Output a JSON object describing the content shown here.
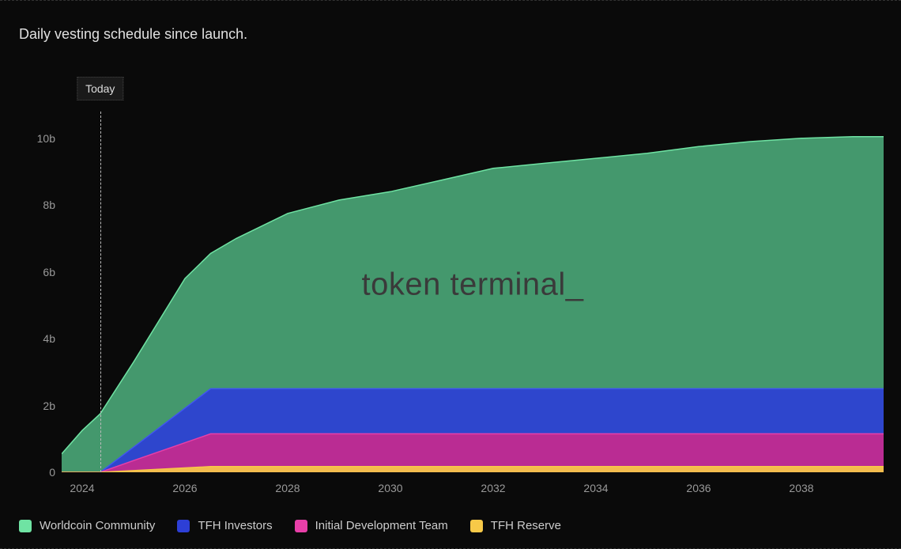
{
  "title": "Daily vesting schedule since launch.",
  "watermark": "token terminal_",
  "chart": {
    "type": "stacked-area",
    "background_color": "#0a0a0a",
    "grid_color": "#3a3a3a",
    "text_color": "#999999",
    "title_fontsize": 18,
    "label_fontsize": 14,
    "x": {
      "min": 2023.6,
      "max": 2039.6,
      "ticks": [
        2024,
        2026,
        2028,
        2030,
        2032,
        2034,
        2036,
        2038
      ],
      "tick_labels": [
        "2024",
        "2026",
        "2028",
        "2030",
        "2032",
        "2034",
        "2036",
        "2038"
      ]
    },
    "y": {
      "min": 0,
      "max": 10.8,
      "unit": "b",
      "ticks": [
        0,
        2,
        4,
        6,
        8,
        10
      ],
      "tick_labels": [
        "0",
        "2b",
        "4b",
        "6b",
        "8b",
        "10b"
      ]
    },
    "today": {
      "label": "Today",
      "x": 2024.35
    },
    "series": [
      {
        "name": "TFH Reserve",
        "color": "#f7c948",
        "stroke": "#f7c948",
        "points": [
          [
            2023.6,
            0
          ],
          [
            2024.35,
            0
          ],
          [
            2025.0,
            0.05
          ],
          [
            2026.5,
            0.17
          ],
          [
            2028,
            0.17
          ],
          [
            2030,
            0.17
          ],
          [
            2032,
            0.17
          ],
          [
            2034,
            0.17
          ],
          [
            2036,
            0.17
          ],
          [
            2038,
            0.17
          ],
          [
            2039.6,
            0.17
          ]
        ]
      },
      {
        "name": "Initial Development Team",
        "color": "#c72a8e",
        "stroke": "#e83fa8",
        "points": [
          [
            2023.6,
            0
          ],
          [
            2024.35,
            0
          ],
          [
            2025.0,
            0.35
          ],
          [
            2026.5,
            1.15
          ],
          [
            2028,
            1.15
          ],
          [
            2030,
            1.15
          ],
          [
            2032,
            1.15
          ],
          [
            2034,
            1.15
          ],
          [
            2036,
            1.15
          ],
          [
            2038,
            1.15
          ],
          [
            2039.6,
            1.15
          ]
        ]
      },
      {
        "name": "TFH Investors",
        "color": "#2d3fd6",
        "stroke": "#4055f0",
        "points": [
          [
            2023.6,
            0
          ],
          [
            2024.35,
            0
          ],
          [
            2025.0,
            0.75
          ],
          [
            2026.5,
            2.5
          ],
          [
            2028,
            2.5
          ],
          [
            2030,
            2.5
          ],
          [
            2032,
            2.5
          ],
          [
            2034,
            2.5
          ],
          [
            2036,
            2.5
          ],
          [
            2038,
            2.5
          ],
          [
            2039.6,
            2.5
          ]
        ]
      },
      {
        "name": "Worldcoin Community",
        "color": "#4aa576",
        "stroke": "#6fe3a3",
        "points": [
          [
            2023.6,
            0.55
          ],
          [
            2024.0,
            1.25
          ],
          [
            2024.35,
            1.75
          ],
          [
            2025.0,
            3.3
          ],
          [
            2026.0,
            5.8
          ],
          [
            2026.5,
            6.55
          ],
          [
            2027.0,
            7.0
          ],
          [
            2028.0,
            7.75
          ],
          [
            2029.0,
            8.15
          ],
          [
            2030.0,
            8.4
          ],
          [
            2031.0,
            8.75
          ],
          [
            2032.0,
            9.1
          ],
          [
            2033.0,
            9.25
          ],
          [
            2034.0,
            9.4
          ],
          [
            2035.0,
            9.55
          ],
          [
            2036.0,
            9.75
          ],
          [
            2037.0,
            9.9
          ],
          [
            2038.0,
            10.0
          ],
          [
            2039.0,
            10.05
          ],
          [
            2039.6,
            10.05
          ]
        ]
      }
    ],
    "legend": [
      {
        "label": "Worldcoin Community",
        "color": "#6fe3a3"
      },
      {
        "label": "TFH Investors",
        "color": "#2d3fd6"
      },
      {
        "label": "Initial Development Team",
        "color": "#e83fa8"
      },
      {
        "label": "TFH Reserve",
        "color": "#f7c948"
      }
    ]
  }
}
